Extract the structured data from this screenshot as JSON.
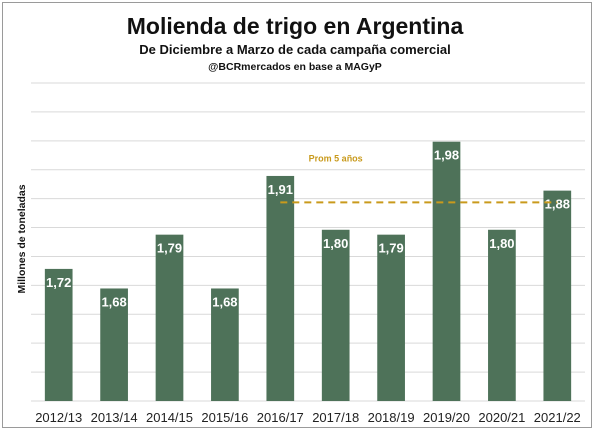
{
  "chart_data": {
    "type": "bar",
    "title": "Molienda de trigo en Argentina",
    "subtitle": "De Diciembre a Marzo de cada campaña comercial",
    "source": "@BCRmercados en base a MAGyP",
    "ylabel": "Millones de toneladas",
    "xlabel": "",
    "categories": [
      "2012/13",
      "2013/14",
      "2014/15",
      "2015/16",
      "2016/17",
      "2017/18",
      "2018/19",
      "2019/20",
      "2020/21",
      "2021/22"
    ],
    "values": [
      1.72,
      1.68,
      1.79,
      1.68,
      1.91,
      1.8,
      1.79,
      1.98,
      1.8,
      1.88
    ],
    "data_labels": [
      "1,72",
      "1,68",
      "1,79",
      "1,68",
      "1,91",
      "1,80",
      "1,79",
      "1,98",
      "1,80",
      "1,88"
    ],
    "average": {
      "label": "Prom 5 años",
      "value": 1.856,
      "from_category": "2016/17",
      "to_category": "2021/22",
      "color": "#c99a1c"
    },
    "ylim": [
      1.45,
      2.1
    ],
    "grid": true,
    "bar_color": "#4e7259"
  }
}
